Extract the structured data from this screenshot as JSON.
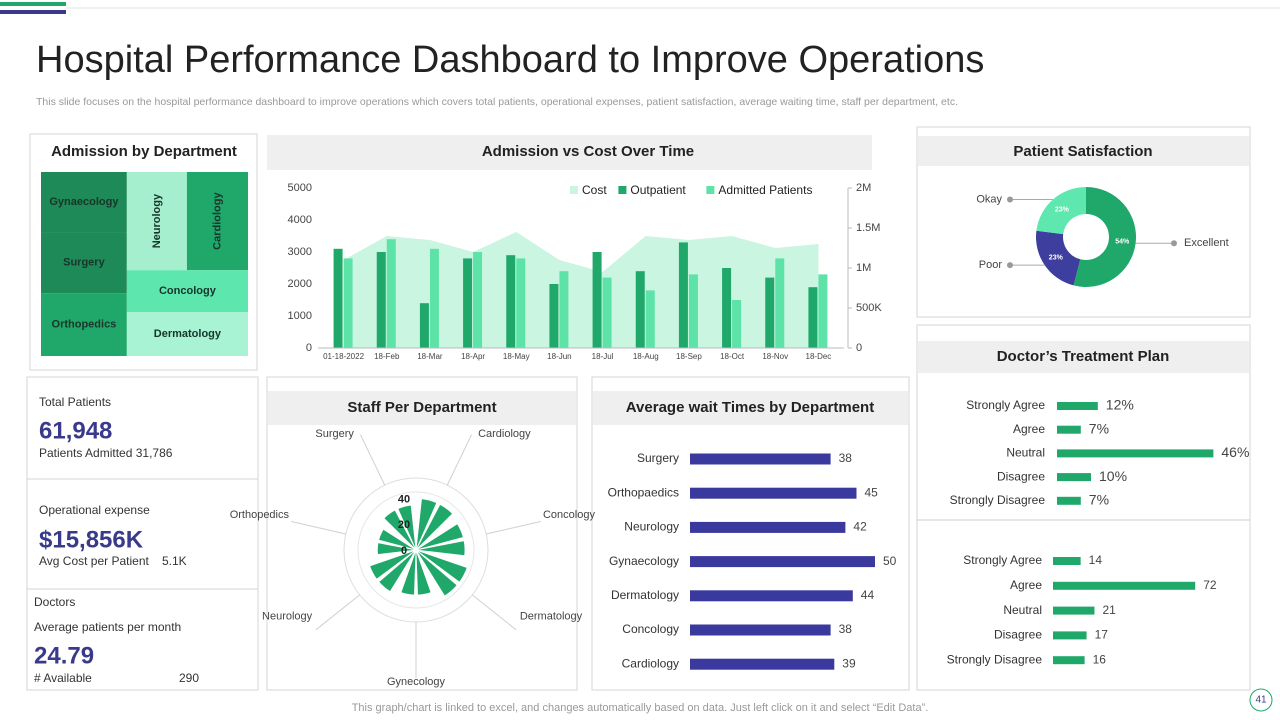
{
  "header": {
    "title": "Hospital Performance Dashboard to Improve Operations",
    "subtitle": "This slide focuses on the hospital performance dashboard to improve operations which covers total patients, operational expenses, patient satisfaction, average waiting time, staff per department, etc."
  },
  "kpis": {
    "total_patients": {
      "label": "Total Patients",
      "value": "61,948",
      "note": "Patients Admitted 31,786"
    },
    "operational_expense": {
      "label": "Operational expense",
      "value": "$15,856K",
      "note": "Avg Cost per Patient",
      "note_value": "5.1K"
    },
    "doctors": {
      "label": "Doctors",
      "sublabel": "Average patients per month",
      "value": "24.79",
      "note": "# Available",
      "note_value": "290"
    }
  },
  "footer": "This graph/chart is linked to excel, and changes automatically based on data. Just left click on it and select “Edit Data”.",
  "page_number": "41",
  "chart_data": [
    {
      "type": "treemap",
      "title": "Admission by Department",
      "categories": [
        "Gynaecology",
        "Surgery",
        "Orthopedics",
        "Neurology",
        "Cardiology",
        "Concology",
        "Dermatology"
      ],
      "values": [
        52,
        52,
        54,
        59,
        60,
        51,
        53
      ],
      "colors": [
        "#1e8a57",
        "#1e8a57",
        "#20a86a",
        "#a6efce",
        "#1fa86a",
        "#5de6ae",
        "#a8f3d3"
      ]
    },
    {
      "type": "bar",
      "title": "Admission vs Cost Over Time",
      "categories": [
        "01-18-2022",
        "18-Feb",
        "18-Mar",
        "18-Apr",
        "18-May",
        "18-Jun",
        "18-Jul",
        "18-Aug",
        "18-Sep",
        "18-Oct",
        "18-Nov",
        "18-Dec"
      ],
      "series": [
        {
          "name": "Cost",
          "type": "area",
          "axis": "y2",
          "color": "#c9f5e1",
          "values": [
            1100000,
            1400000,
            1350000,
            1200000,
            1450000,
            1100000,
            950000,
            1400000,
            1350000,
            1400000,
            1250000,
            1300000
          ]
        },
        {
          "name": "Outpatient",
          "type": "bar",
          "color": "#1fa86a",
          "values": [
            3100,
            3000,
            1400,
            2800,
            2900,
            2000,
            3000,
            2400,
            3300,
            2500,
            2200,
            1900
          ]
        },
        {
          "name": "Admitted Patients",
          "type": "bar",
          "color": "#5de3a8",
          "values": [
            2800,
            3400,
            3100,
            3000,
            2800,
            2400,
            2200,
            1800,
            2300,
            1500,
            2800,
            2300
          ]
        }
      ],
      "ylim": [
        0,
        5000
      ],
      "yticks": [
        0,
        1000,
        2000,
        3000,
        4000,
        5000
      ],
      "y2lim": [
        0,
        2000000
      ],
      "y2ticks": [
        0,
        {
          "value": 500000,
          "label": "500K"
        },
        {
          "value": 1000000,
          "label": "1M"
        },
        {
          "value": 1500000,
          "label": "1.5M"
        },
        {
          "value": 2000000,
          "label": "2M"
        }
      ],
      "legend": "top-right"
    },
    {
      "type": "pie",
      "title": "Patient Satisfaction",
      "categories": [
        "Excellent",
        "Poor",
        "Okay"
      ],
      "values": [
        54,
        23,
        23
      ],
      "value_labels": [
        "54%",
        "23%",
        "23%"
      ],
      "colors": [
        "#20a86a",
        "#3e3e9f",
        "#5ee8b0"
      ],
      "donut": true
    },
    {
      "type": "barh",
      "title": "Doctor’s Treatment Plan",
      "categories": [
        "Strongly Agree",
        "Agree",
        "Neutral",
        "Disagree",
        "Strongly Disagree"
      ],
      "values": [
        12,
        7,
        46,
        10,
        7
      ],
      "value_labels": [
        "12%",
        "7%",
        "46%",
        "10%",
        "7%"
      ],
      "color": "#20a86a",
      "xlim": [
        0,
        50
      ]
    },
    {
      "type": "barh",
      "categories": [
        "Strongly Agree",
        "Agree",
        "Neutral",
        "Disagree",
        "Strongly Disagree"
      ],
      "values": [
        14,
        72,
        21,
        17,
        16
      ],
      "color": "#20a86a",
      "xlim": [
        0,
        80
      ]
    },
    {
      "type": "polar",
      "title": "Staff Per Department",
      "categories": [
        "Surgery",
        "Cardiology",
        "Concology",
        "Dermatology",
        "Gynecology",
        "Neurology",
        "Orthopedics"
      ],
      "values": [
        35,
        40,
        38,
        42,
        35,
        38,
        30
      ],
      "color": "#20a86a",
      "ylim": [
        0,
        45
      ],
      "yticks": [
        0,
        20,
        40
      ]
    },
    {
      "type": "barh",
      "title": "Average wait Times by Department",
      "categories": [
        "Surgery",
        "Orthopaedics",
        "Neurology",
        "Gynaecology",
        "Dermatology",
        "Concology",
        "Cardiology"
      ],
      "values": [
        38,
        45,
        42,
        50,
        44,
        38,
        39
      ],
      "color": "#3a3a9e",
      "xlim": [
        0,
        50
      ]
    }
  ]
}
